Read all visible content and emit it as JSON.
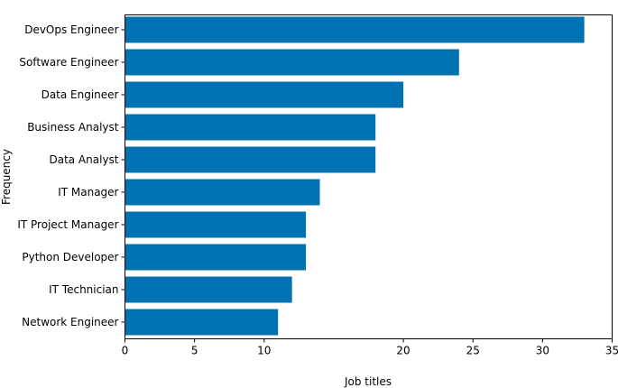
{
  "chart_data": {
    "type": "bar",
    "orientation": "horizontal",
    "categories": [
      "DevOps Engineer",
      "Software Engineer",
      "Data Engineer",
      "Business Analyst",
      "Data Analyst",
      "IT Manager",
      "IT Project Manager",
      "Python Developer",
      "IT Technician",
      "Network Engineer"
    ],
    "values": [
      33,
      24,
      20,
      18,
      18,
      14,
      13,
      13,
      12,
      11
    ],
    "xlabel": "Job titles",
    "ylabel": "Frequency",
    "xlim": [
      0,
      35
    ],
    "xticks": [
      "0",
      "5",
      "10",
      "20",
      "25",
      "30",
      "35"
    ],
    "grid": false,
    "bar_color": "#0072B2"
  }
}
